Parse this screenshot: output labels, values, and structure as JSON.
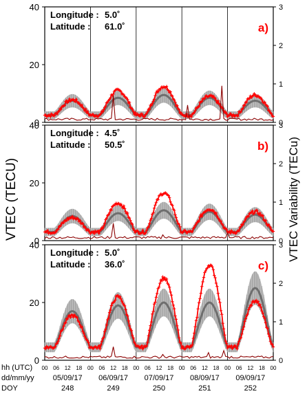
{
  "y_axis_left_title": "VTEC (TECU)",
  "y_axis_right_title": "VTEC Variability (TECu)",
  "colors": {
    "observed": "#ff0000",
    "median": "#6e6e6e",
    "median_band": "#b0b0b0",
    "variability": "#8b0000",
    "frame": "#000000"
  },
  "bottom_axis": {
    "row_labels": [
      "hh (UTC)",
      "dd/mm/yy",
      "DOY"
    ],
    "hour_ticks": [
      "00",
      "06",
      "12",
      "18",
      "00",
      "06",
      "12",
      "18",
      "00",
      "06",
      "12",
      "18",
      "00",
      "06",
      "12",
      "18",
      "00",
      "06",
      "12",
      "18",
      "00"
    ],
    "dates": [
      "05/09/17",
      "06/09/17",
      "07/09/17",
      "08/09/17",
      "09/09/17"
    ],
    "doys": [
      "248",
      "249",
      "250",
      "251",
      "252"
    ]
  },
  "chart_data": [
    {
      "type": "line",
      "panel_label": "a)",
      "lon_label": "Longitude :",
      "lon_value": "5.0˚",
      "lat_label": "Latitude :",
      "lat_value": "61.0˚",
      "x_unit": "hours since 05/09/17 00 UTC",
      "xlim": [
        0,
        120
      ],
      "ylim_left": [
        0,
        40
      ],
      "ylim_right": [
        0,
        3
      ],
      "left_ticks": [
        "0",
        "20",
        "40"
      ],
      "right_ticks": [
        "0",
        "1",
        "2",
        "3"
      ],
      "day_peaks_observed": [
        7.8,
        11.0,
        12.5,
        9.0,
        9.5
      ],
      "day_peaks_median": [
        7.5,
        8.5,
        9.5,
        8.5,
        7.5
      ],
      "night_min": 2.5,
      "variability_spikes": [
        [
          36,
          0.7
        ],
        [
          75,
          0.45
        ],
        [
          93,
          0.95
        ]
      ],
      "variability_base": 0.05
    },
    {
      "type": "line",
      "panel_label": "b)",
      "lon_label": "Longitude :",
      "lon_value": "4.5˚",
      "lat_label": "Latitude :",
      "lat_value": "50.5˚",
      "x_unit": "hours since 05/09/17 00 UTC",
      "xlim": [
        0,
        120
      ],
      "ylim_left": [
        0,
        40
      ],
      "ylim_right": [
        0,
        3
      ],
      "left_ticks": [
        "0",
        "20",
        "40"
      ],
      "right_ticks": [
        "0",
        "1",
        "2",
        "3"
      ],
      "day_peaks_observed": [
        8.0,
        13.0,
        16.5,
        11.0,
        10.0
      ],
      "day_peaks_median": [
        8.5,
        9.5,
        10.5,
        10.0,
        9.0
      ],
      "night_min": 3.0,
      "variability_spikes": [
        [
          36,
          0.45
        ],
        [
          62,
          0.15
        ],
        [
          96,
          0.2
        ]
      ],
      "variability_base": 0.05
    },
    {
      "type": "line",
      "panel_label": "c)",
      "lon_label": "Longitude :",
      "lon_value": "5.0˚",
      "lat_label": "Latitude :",
      "lat_value": "36.0˚",
      "x_unit": "hours since 05/09/17 00 UTC",
      "xlim": [
        0,
        120
      ],
      "ylim_left": [
        0,
        40
      ],
      "ylim_right": [
        0,
        3
      ],
      "left_ticks": [
        "0",
        "20",
        "40"
      ],
      "right_ticks": [
        "0",
        "1",
        "2",
        "3"
      ],
      "day_peaks_observed": [
        15.5,
        22.0,
        28.5,
        33.0,
        20.5
      ],
      "day_peaks_median": [
        17.0,
        19.0,
        20.0,
        20.0,
        25.0
      ],
      "night_min": 4.5,
      "variability_spikes": [
        [
          36,
          0.35
        ],
        [
          62,
          0.15
        ],
        [
          86,
          0.2
        ],
        [
          94,
          0.25
        ],
        [
          98,
          0.1
        ]
      ],
      "variability_base": 0.05
    }
  ]
}
